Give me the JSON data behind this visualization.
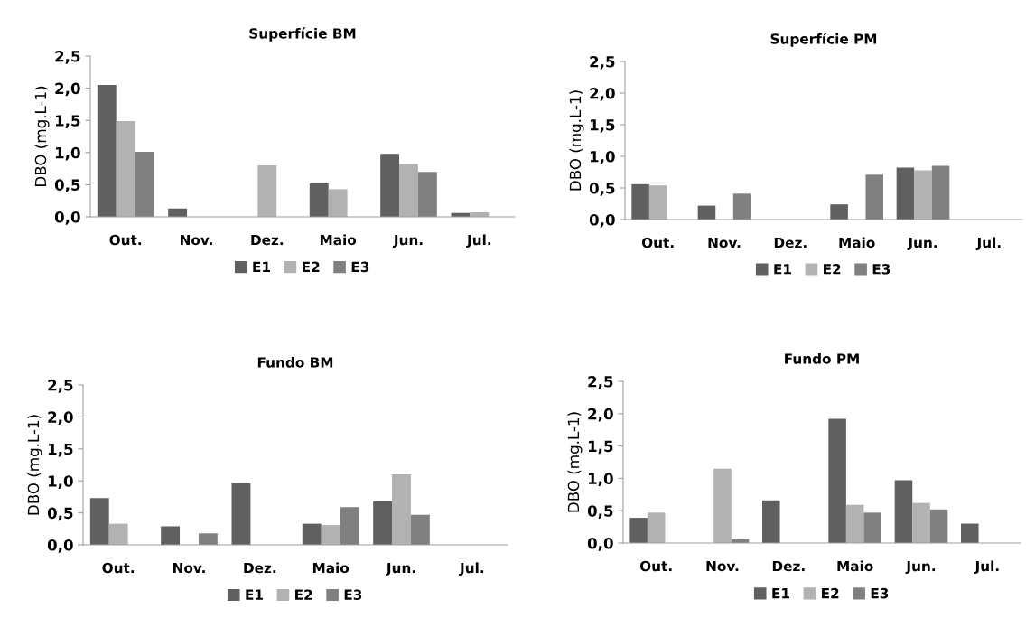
{
  "chart_data": [
    {
      "type": "bar",
      "title": "Superfície BM",
      "ylabel": "DBO (mg.L-1)",
      "categories": [
        "Out.",
        "Nov.",
        "Dez.",
        "Maio",
        "Jun.",
        "Jul."
      ],
      "ylim": [
        0,
        2.5
      ],
      "yticks": [
        {
          "value": 0,
          "label": "0,0"
        },
        {
          "value": 0.5,
          "label": "0,5"
        },
        {
          "value": 1,
          "label": "1,0"
        },
        {
          "value": 1.5,
          "label": "1,5"
        },
        {
          "value": 2,
          "label": "2,0"
        },
        {
          "value": 2.5,
          "label": "2,5"
        }
      ],
      "grid": false,
      "legend": "bottom",
      "series": [
        {
          "name": "E1",
          "color": "#606060",
          "values": [
            2.05,
            0.13,
            null,
            0.52,
            0.98,
            0.06
          ]
        },
        {
          "name": "E2",
          "color": "#b2b2b2",
          "values": [
            1.49,
            null,
            0.8,
            0.43,
            0.82,
            0.07
          ]
        },
        {
          "name": "E3",
          "color": "#808080",
          "values": [
            1.01,
            null,
            null,
            null,
            0.7,
            null
          ]
        }
      ]
    },
    {
      "type": "bar",
      "title": "Superfície PM",
      "ylabel": "DBO (mg.L-1)",
      "categories": [
        "Out.",
        "Nov.",
        "Dez.",
        "Maio",
        "Jun.",
        "Jul."
      ],
      "ylim": [
        0,
        2.5
      ],
      "yticks": [
        {
          "value": 0,
          "label": "0,0"
        },
        {
          "value": 0.5,
          "label": "0,5"
        },
        {
          "value": 1,
          "label": "1,0"
        },
        {
          "value": 1.5,
          "label": "1,5"
        },
        {
          "value": 2,
          "label": "2,0"
        },
        {
          "value": 2.5,
          "label": "2,5"
        }
      ],
      "grid": false,
      "legend": "bottom",
      "series": [
        {
          "name": "E1",
          "color": "#606060",
          "values": [
            0.56,
            0.22,
            null,
            0.24,
            0.82,
            null
          ]
        },
        {
          "name": "E2",
          "color": "#b2b2b2",
          "values": [
            0.54,
            null,
            null,
            null,
            0.78,
            null
          ]
        },
        {
          "name": "E3",
          "color": "#808080",
          "values": [
            null,
            0.41,
            null,
            0.71,
            0.85,
            null
          ]
        }
      ]
    },
    {
      "type": "bar",
      "title": "Fundo BM",
      "ylabel": "DBO (mg.L-1)",
      "categories": [
        "Out.",
        "Nov.",
        "Dez.",
        "Maio",
        "Jun.",
        "Jul."
      ],
      "ylim": [
        0,
        2.5
      ],
      "yticks": [
        {
          "value": 0,
          "label": "0,0"
        },
        {
          "value": 0.5,
          "label": "0,5"
        },
        {
          "value": 1,
          "label": "1,0"
        },
        {
          "value": 1.5,
          "label": "1,5"
        },
        {
          "value": 2,
          "label": "2,0"
        },
        {
          "value": 2.5,
          "label": "2,5"
        }
      ],
      "grid": false,
      "legend": "bottom",
      "series": [
        {
          "name": "E1",
          "color": "#606060",
          "values": [
            0.73,
            0.29,
            0.96,
            0.33,
            0.68,
            null
          ]
        },
        {
          "name": "E2",
          "color": "#b2b2b2",
          "values": [
            0.33,
            null,
            null,
            0.31,
            1.1,
            null
          ]
        },
        {
          "name": "E3",
          "color": "#808080",
          "values": [
            null,
            0.18,
            null,
            0.59,
            0.47,
            null
          ]
        }
      ]
    },
    {
      "type": "bar",
      "title": "Fundo PM",
      "ylabel": "DBO (mg.L-1)",
      "categories": [
        "Out.",
        "Nov.",
        "Dez.",
        "Maio",
        "Jun.",
        "Jul."
      ],
      "ylim": [
        0,
        2.5
      ],
      "yticks": [
        {
          "value": 0,
          "label": "0,0"
        },
        {
          "value": 0.5,
          "label": "0,5"
        },
        {
          "value": 1,
          "label": "1,0"
        },
        {
          "value": 1.5,
          "label": "1,5"
        },
        {
          "value": 2,
          "label": "2,0"
        },
        {
          "value": 2.5,
          "label": "2,5"
        }
      ],
      "grid": false,
      "legend": "bottom",
      "series": [
        {
          "name": "E1",
          "color": "#606060",
          "values": [
            0.39,
            null,
            0.66,
            1.92,
            0.97,
            0.3
          ]
        },
        {
          "name": "E2",
          "color": "#b2b2b2",
          "values": [
            0.47,
            1.15,
            null,
            0.59,
            0.62,
            null
          ]
        },
        {
          "name": "E3",
          "color": "#808080",
          "values": [
            null,
            0.06,
            null,
            0.47,
            0.52,
            null
          ]
        }
      ]
    }
  ]
}
